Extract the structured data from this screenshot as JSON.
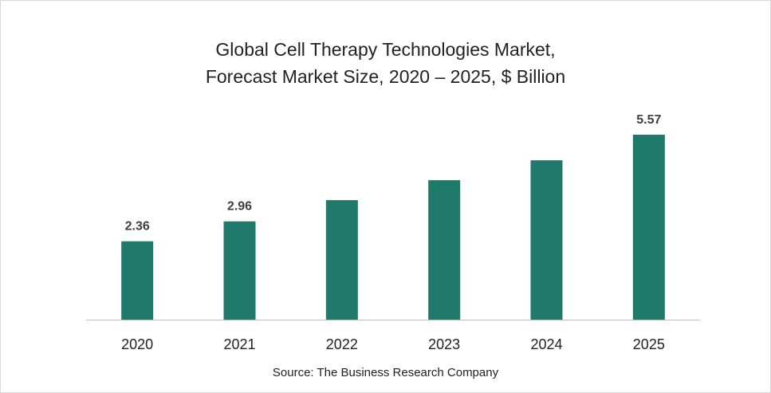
{
  "chart_data": {
    "type": "bar",
    "title_lines": [
      "Global Cell Therapy Technologies Market,",
      "Forecast Market Size, 2020 – 2025, $ Billion"
    ],
    "categories": [
      "2020",
      "2021",
      "2022",
      "2023",
      "2024",
      "2025"
    ],
    "values": [
      2.36,
      2.96,
      3.6,
      4.2,
      4.8,
      5.57
    ],
    "data_labels": [
      "2.36",
      "2.96",
      "",
      "",
      "",
      "5.57"
    ],
    "bar_color": "#1f7a6b",
    "ylim": [
      0,
      5.57
    ],
    "grid": false,
    "legend": "none"
  },
  "footer": {
    "source": "Source: The Business Research Company"
  }
}
